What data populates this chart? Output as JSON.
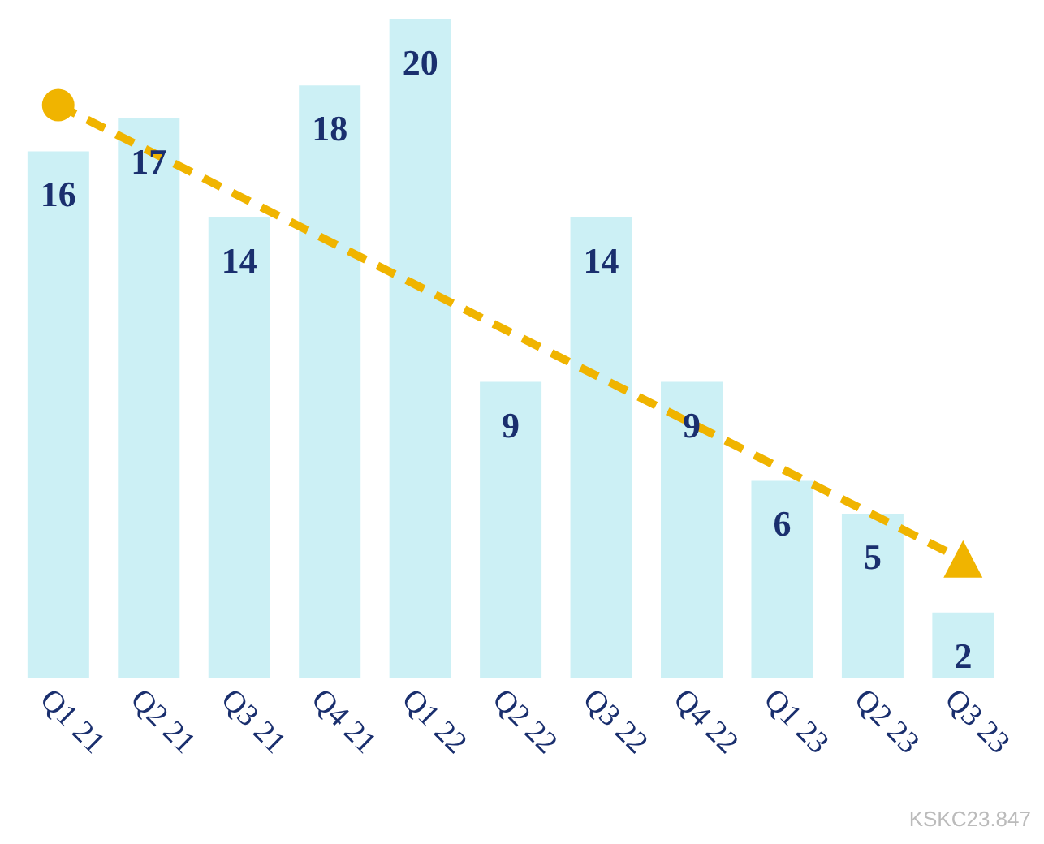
{
  "chart_data": {
    "type": "bar",
    "categories": [
      "Q1 21",
      "Q2 21",
      "Q3 21",
      "Q4 21",
      "Q1 22",
      "Q2 22",
      "Q3 22",
      "Q4 22",
      "Q1 23",
      "Q2 23",
      "Q3 23"
    ],
    "series": [
      {
        "color": "#ccf0f5",
        "values": [
          16,
          17,
          14,
          18,
          20,
          9,
          14,
          9,
          6,
          5,
          2
        ],
        "value_labels": [
          "16",
          "17",
          "14",
          "18",
          "20",
          "9",
          "14",
          "9",
          "6",
          "5",
          "2"
        ]
      },
      {
        "type": "line",
        "color": "#f0b400",
        "x": [
          "Q1 21",
          "Q3 23"
        ],
        "values": [
          17.4,
          3.6
        ],
        "line_style": "dashed",
        "marker": "circle"
      }
    ],
    "grid": false,
    "legend": false,
    "annotations": [
      "KSKC23.847"
    ]
  }
}
